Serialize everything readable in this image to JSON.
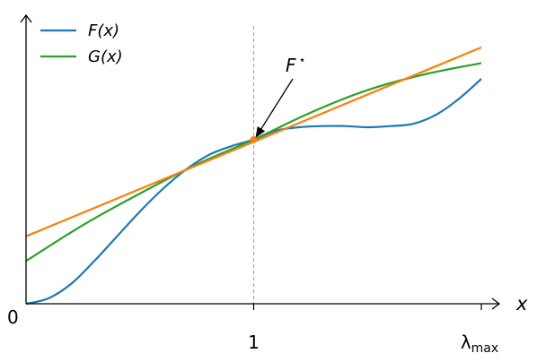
{
  "chart_data": {
    "type": "line",
    "xlabel": "x",
    "origin_label": "0",
    "xlim": [
      0,
      2
    ],
    "ylim": [
      0,
      1.24
    ],
    "x_ticks": [
      {
        "value": 1,
        "label": "1"
      },
      {
        "value": 2,
        "label": "λ",
        "sub": "max"
      }
    ],
    "grid": false,
    "legend": {
      "position": "top-left"
    },
    "series": [
      {
        "name": "F(x)",
        "color": "#1f77b4",
        "x": [
          0,
          0.1,
          0.2,
          0.3,
          0.4,
          0.5,
          0.6,
          0.7,
          0.8,
          0.9,
          1.0,
          1.1,
          1.2,
          1.3,
          1.4,
          1.5,
          1.6,
          1.7,
          1.8,
          1.9,
          2.0
        ],
        "y": [
          0.0,
          0.025,
          0.09,
          0.19,
          0.3,
          0.41,
          0.51,
          0.595,
          0.66,
          0.7,
          0.73,
          0.77,
          0.785,
          0.79,
          0.79,
          0.785,
          0.79,
          0.8,
          0.84,
          0.91,
          1.0
        ]
      },
      {
        "name": "G(x)",
        "color": "#2ca02c",
        "x": [
          0,
          0.25,
          0.5,
          0.75,
          1.0,
          1.25,
          1.5,
          1.75,
          2.0
        ],
        "y": [
          0.19,
          0.35,
          0.49,
          0.62,
          0.73,
          0.85,
          0.95,
          1.02,
          1.07
        ]
      },
      {
        "color": "#ff7f0e",
        "x": [
          0,
          2.0
        ],
        "y": [
          0.3,
          1.14
        ]
      }
    ],
    "markers": [
      {
        "x": 1.0,
        "y": 0.73,
        "color": "#ff7f0e"
      }
    ],
    "vlines": [
      {
        "x": 1.0,
        "style": "dashed",
        "color": "#aaaaaa"
      }
    ],
    "annotations": [
      {
        "text": "F",
        "sup": "⋆",
        "target_x": 1.0,
        "target_y": 0.73
      }
    ]
  }
}
